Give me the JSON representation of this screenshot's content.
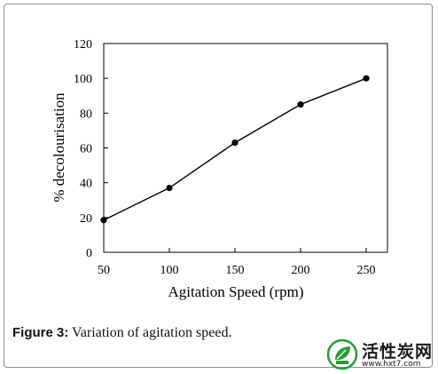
{
  "caption": {
    "lead": "Figure 3:",
    "text": " Variation of agitation speed."
  },
  "watermark": {
    "name": "活性炭网",
    "url": "www.hxt7.com",
    "color": "#2e9a3a"
  },
  "chart_data": {
    "type": "line",
    "title": "",
    "xlabel": "Agitation Speed (rpm)",
    "ylabel": "% decolourisation",
    "xlim": [
      50,
      250
    ],
    "ylim": [
      0,
      120
    ],
    "xticks": [
      50,
      100,
      150,
      200,
      250
    ],
    "yticks": [
      0,
      20,
      40,
      60,
      80,
      100,
      120
    ],
    "grid": false,
    "legend": "none",
    "series": [
      {
        "x": [
          50,
          100,
          150,
          200,
          250
        ],
        "y": [
          18.5,
          37,
          63,
          85,
          100
        ],
        "color": "#000000",
        "marker": "circle"
      }
    ]
  }
}
